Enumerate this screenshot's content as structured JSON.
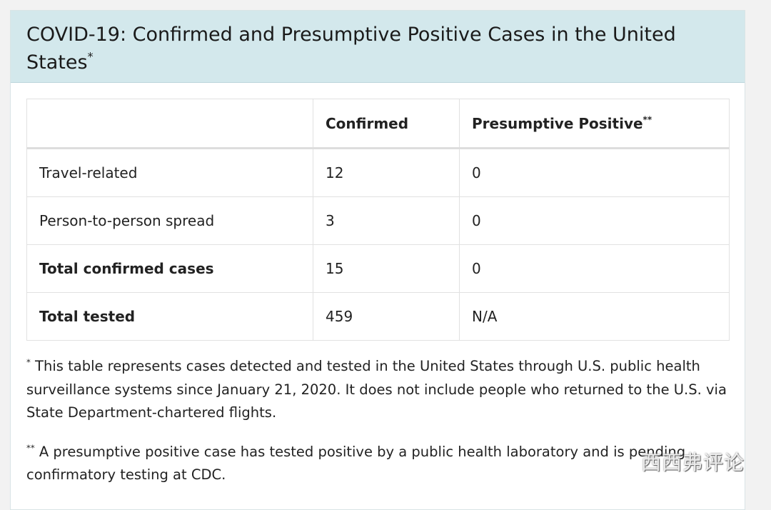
{
  "header": {
    "title": "COVID-19: Confirmed and Presumptive Positive Cases in the United States",
    "title_mark": "*"
  },
  "table": {
    "columns": [
      "",
      "Confirmed",
      "Presumptive Positive"
    ],
    "column_mark": "**",
    "rows": [
      [
        "Travel-related",
        "12",
        "0"
      ],
      [
        "Person-to-person spread",
        "3",
        "0"
      ],
      [
        "Total confirmed cases",
        "15",
        "0"
      ],
      [
        "Total tested",
        "459",
        "N/A"
      ]
    ]
  },
  "footnotes": [
    {
      "mark": "*",
      "text": "This table represents cases detected and tested in the United States through U.S. public health surveillance systems since January 21, 2020. It does not include people who returned to the U.S. via State Department-chartered flights."
    },
    {
      "mark": "**",
      "text": "A presumptive positive case has tested positive by a public health laboratory and is pending confirmatory testing at CDC."
    }
  ],
  "watermark": "西西弗评论"
}
